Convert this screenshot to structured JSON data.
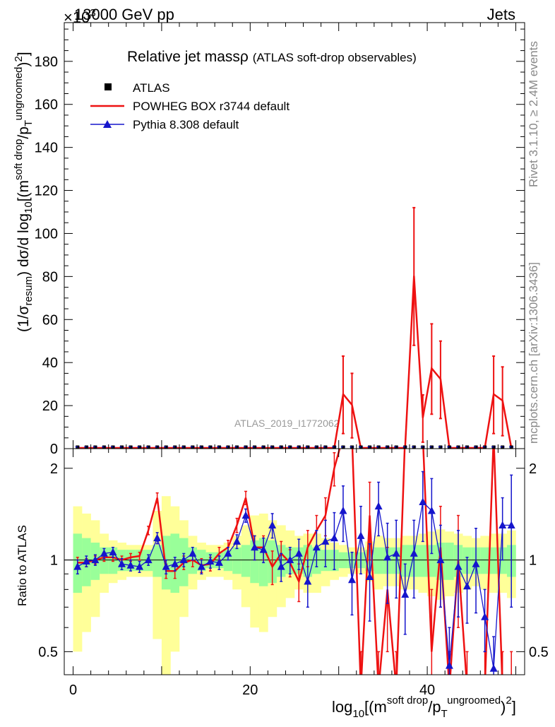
{
  "header": {
    "energy_label": "13000 GeV pp",
    "category_label": "Jets",
    "exponent_label": "×10",
    "exponent_power": "3"
  },
  "side": {
    "rivet_label": "Rivet 3.1.10, ≥ 2.4M events",
    "mcplots_label": "mcplots.cern.ch [arXiv:1306.3436]"
  },
  "chart_data": {
    "type": "line",
    "title": "Relative jet massρ",
    "subtitle": "(ATLAS soft-drop observables)",
    "analysis_label": "ATLAS_2019_I1772062",
    "ylabel_main": "(1/σresum) dσ/d log10[(msoft drop/pTungroomed)2]",
    "ylabel_ratio": "Ratio to ATLAS",
    "xlabel": "log10[(msoft drop/pTungroomed)2]",
    "xlim": [
      -1,
      51
    ],
    "ylim_main": [
      0,
      198
    ],
    "ylim_ratio": [
      0.42,
      2.32
    ],
    "yscale_ratio": "log",
    "x_ticks": [
      0,
      20,
      40
    ],
    "y_ticks_main": [
      0,
      20,
      40,
      60,
      80,
      100,
      120,
      140,
      160,
      180
    ],
    "y_ticks_ratio": [
      0.5,
      1,
      2
    ],
    "legend_position": "top-left",
    "series": [
      {
        "name": "ATLAS",
        "color": "#000000",
        "marker": "square"
      },
      {
        "name": "POWHEG BOX r3744 default",
        "color": "#ee1111",
        "marker": "none"
      },
      {
        "name": "Pythia 8.308 default",
        "color": "#1515cc",
        "marker": "triangle"
      }
    ],
    "main_points": {
      "x": [
        30.5,
        31.5,
        32.5,
        37.5,
        38.5,
        39.5,
        40.5,
        41.5,
        47.5,
        48.5,
        49.5
      ],
      "y": [
        25,
        20,
        0,
        0,
        80,
        14,
        37,
        32,
        25,
        22,
        0
      ],
      "yerr": [
        18,
        15,
        0,
        0,
        32,
        11,
        21,
        18,
        18,
        16,
        0
      ]
    },
    "ratio": {
      "x": [
        0.5,
        1.5,
        2.5,
        3.5,
        4.5,
        5.5,
        6.5,
        7.5,
        8.5,
        9.5,
        10.5,
        11.5,
        12.5,
        13.5,
        14.5,
        15.5,
        16.5,
        17.5,
        18.5,
        19.5,
        20.5,
        21.5,
        22.5,
        23.5,
        24.5,
        25.5,
        26.5,
        27.5,
        28.5,
        29.5,
        30.5,
        31.5,
        32.5,
        33.5,
        34.5,
        35.5,
        36.5,
        37.5,
        38.5,
        39.5,
        40.5,
        41.5,
        42.5,
        43.5,
        44.5,
        45.5,
        46.5,
        47.5,
        48.5,
        49.5
      ],
      "powheg": [
        0.98,
        0.98,
        1.0,
        1.02,
        1.02,
        1.0,
        1.02,
        1.03,
        1.25,
        1.6,
        0.92,
        0.92,
        0.98,
        1.0,
        0.96,
        0.97,
        1.05,
        1.1,
        1.3,
        1.6,
        1.1,
        1.1,
        0.95,
        1.05,
        0.98,
        0.85,
        1.1,
        1.25,
        1.4,
        2.0,
        9.0,
        5.0,
        0.3,
        1.4,
        0.3,
        0.8,
        0.3,
        4.0,
        4.0,
        4.0,
        0.5,
        1.1,
        0.3,
        1.0,
        0.3,
        0.2,
        0.3,
        5.0,
        0.3,
        0.3
      ],
      "powheg_err": [
        0.04,
        0.03,
        0.03,
        0.03,
        0.03,
        0.03,
        0.03,
        0.03,
        0.04,
        0.06,
        0.05,
        0.05,
        0.05,
        0.05,
        0.05,
        0.05,
        0.05,
        0.06,
        0.07,
        0.08,
        0.1,
        0.1,
        0.12,
        0.1,
        0.1,
        0.12,
        0.15,
        0.15,
        0.2,
        0.25,
        0.5,
        0.5,
        0.2,
        0.4,
        0.2,
        0.3,
        0.2,
        0.5,
        0.5,
        0.5,
        0.3,
        0.4,
        0.2,
        0.4,
        0.2,
        0.2,
        0.2,
        0.5,
        0.2,
        0.2
      ],
      "pythia": [
        0.95,
        0.99,
        1.0,
        1.05,
        1.06,
        0.97,
        0.96,
        0.95,
        1.0,
        1.18,
        0.95,
        0.97,
        1.0,
        1.05,
        0.95,
        0.99,
        0.98,
        1.05,
        1.15,
        1.4,
        1.1,
        1.08,
        1.3,
        0.95,
        1.0,
        1.05,
        0.85,
        1.1,
        1.15,
        1.18,
        1.45,
        0.86,
        1.2,
        0.88,
        1.5,
        1.02,
        1.05,
        0.77,
        1.05,
        1.55,
        1.45,
        1.0,
        0.45,
        0.95,
        0.82,
        0.97,
        0.65,
        0.44,
        1.3,
        1.3
      ],
      "pythia_err": [
        0.05,
        0.04,
        0.04,
        0.04,
        0.04,
        0.04,
        0.04,
        0.04,
        0.04,
        0.05,
        0.05,
        0.05,
        0.05,
        0.05,
        0.05,
        0.05,
        0.05,
        0.05,
        0.06,
        0.07,
        0.1,
        0.1,
        0.12,
        0.1,
        0.1,
        0.12,
        0.15,
        0.15,
        0.2,
        0.25,
        0.3,
        0.2,
        0.3,
        0.25,
        0.3,
        0.3,
        0.3,
        0.2,
        0.3,
        0.4,
        0.4,
        0.3,
        0.15,
        0.3,
        0.2,
        0.3,
        0.15,
        0.12,
        0.3,
        0.6
      ],
      "band_inner": [
        0.22,
        0.18,
        0.14,
        0.1,
        0.1,
        0.08,
        0.08,
        0.08,
        0.08,
        0.12,
        0.2,
        0.22,
        0.18,
        0.1,
        0.08,
        0.06,
        0.06,
        0.08,
        0.1,
        0.12,
        0.16,
        0.18,
        0.16,
        0.12,
        0.1,
        0.1,
        0.12,
        0.1,
        0.08,
        0.08,
        0.06,
        0.06,
        0.06,
        0.08,
        0.1,
        0.1,
        0.1,
        0.12,
        0.12,
        0.12,
        0.12,
        0.14,
        0.14,
        0.12,
        0.1,
        0.1,
        0.1,
        0.1,
        0.1,
        0.12
      ],
      "band_outer": [
        0.5,
        0.42,
        0.35,
        0.22,
        0.16,
        0.14,
        0.12,
        0.12,
        0.12,
        0.45,
        0.62,
        0.5,
        0.35,
        0.2,
        0.14,
        0.12,
        0.12,
        0.14,
        0.2,
        0.3,
        0.4,
        0.42,
        0.35,
        0.3,
        0.25,
        0.2,
        0.22,
        0.22,
        0.18,
        0.14,
        0.12,
        0.1,
        0.1,
        0.15,
        0.2,
        0.18,
        0.18,
        0.2,
        0.2,
        0.22,
        0.24,
        0.26,
        0.24,
        0.22,
        0.2,
        0.18,
        0.2,
        0.22,
        0.22,
        0.25
      ]
    }
  }
}
